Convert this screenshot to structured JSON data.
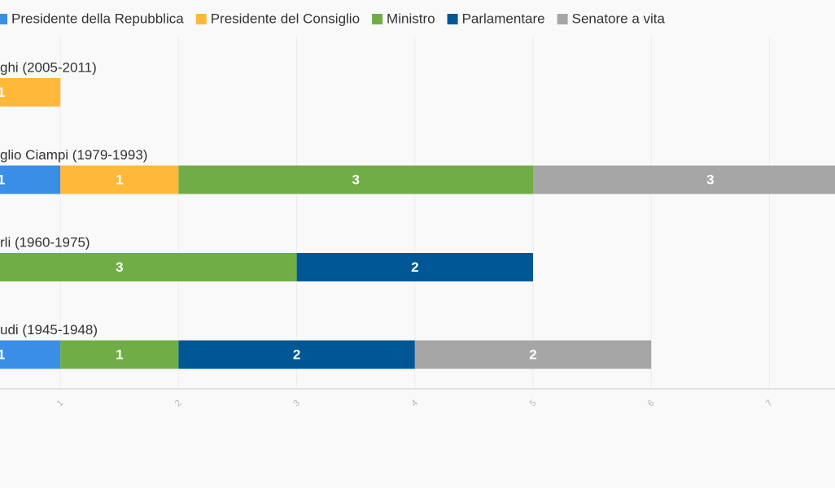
{
  "chart_data": {
    "type": "stacked-bar-horizontal",
    "categories": [
      "ghi (2005-2011)",
      "glio Ciampi (1979-1993)",
      "rli (1960-1975)",
      "udi (1945-1948)"
    ],
    "series": [
      {
        "name": "Presidente della Repubblica",
        "color": "#3a8ee6",
        "values": [
          null,
          1,
          null,
          1
        ]
      },
      {
        "name": "Presidente del Consiglio",
        "color": "#ffb83a",
        "values": [
          1,
          1,
          null,
          null
        ]
      },
      {
        "name": "Ministro",
        "color": "#71ad47",
        "values": [
          null,
          3,
          3,
          1
        ]
      },
      {
        "name": "Parlamentare",
        "color": "#005796",
        "values": [
          null,
          null,
          2,
          2
        ]
      },
      {
        "name": "Senatore a vita",
        "color": "#a6a6a6",
        "values": [
          null,
          3,
          null,
          2
        ]
      }
    ],
    "xlim": [
      0,
      8
    ],
    "xticks": [
      1,
      2,
      3,
      4,
      5,
      6,
      7
    ],
    "grid": true,
    "legend": "top"
  }
}
